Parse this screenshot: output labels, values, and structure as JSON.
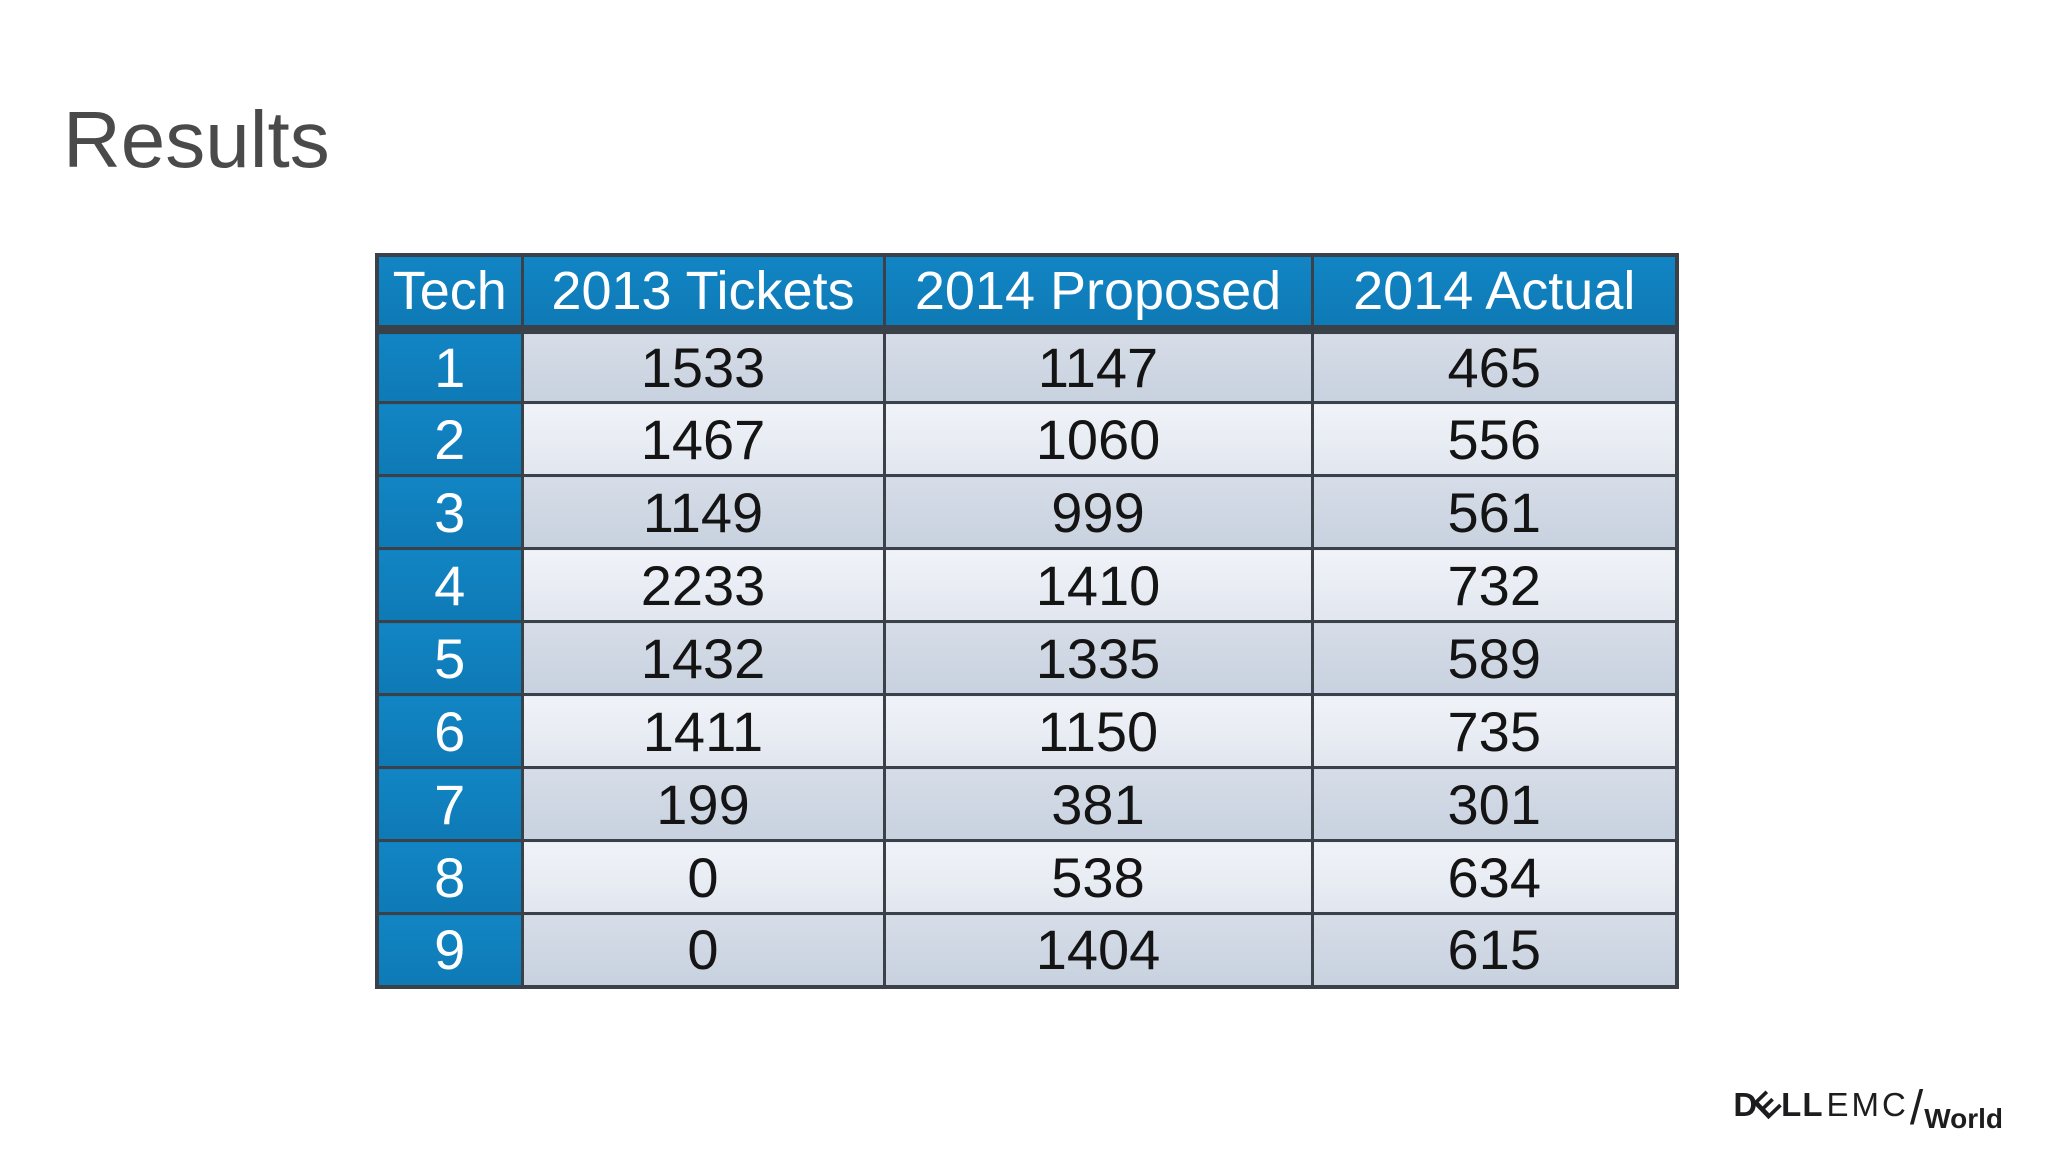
{
  "slide": {
    "title": "Results",
    "background_color": "#ffffff",
    "title_color": "#4a4a4a"
  },
  "colors": {
    "header_blue": "#0f7ebc",
    "table_border": "#3b4149",
    "row_dark": "#ccd5e2",
    "row_light": "#e9edf4",
    "body_text": "#141414",
    "header_text": "#ffffff",
    "logo_color": "#1d1d1f"
  },
  "table": {
    "columns": [
      "Tech",
      "2013 Tickets",
      "2014 Proposed",
      "2014 Actual"
    ],
    "rows": [
      {
        "tech": "1",
        "tickets_2013": "1533",
        "proposed_2014": "1147",
        "actual_2014": "465"
      },
      {
        "tech": "2",
        "tickets_2013": "1467",
        "proposed_2014": "1060",
        "actual_2014": "556"
      },
      {
        "tech": "3",
        "tickets_2013": "1149",
        "proposed_2014": "999",
        "actual_2014": "561"
      },
      {
        "tech": "4",
        "tickets_2013": "2233",
        "proposed_2014": "1410",
        "actual_2014": "732"
      },
      {
        "tech": "5",
        "tickets_2013": "1432",
        "proposed_2014": "1335",
        "actual_2014": "589"
      },
      {
        "tech": "6",
        "tickets_2013": "1411",
        "proposed_2014": "1150",
        "actual_2014": "735"
      },
      {
        "tech": "7",
        "tickets_2013": "199",
        "proposed_2014": "381",
        "actual_2014": "301"
      },
      {
        "tech": "8",
        "tickets_2013": "0",
        "proposed_2014": "538",
        "actual_2014": "634"
      },
      {
        "tech": "9",
        "tickets_2013": "0",
        "proposed_2014": "1404",
        "actual_2014": "615"
      }
    ]
  },
  "chart_data": {
    "type": "table",
    "title": "Results",
    "columns": [
      "Tech",
      "2013 Tickets",
      "2014 Proposed",
      "2014 Actual"
    ],
    "rows": [
      [
        1,
        1533,
        1147,
        465
      ],
      [
        2,
        1467,
        1060,
        556
      ],
      [
        3,
        1149,
        999,
        561
      ],
      [
        4,
        2233,
        1410,
        732
      ],
      [
        5,
        1432,
        1335,
        589
      ],
      [
        6,
        1411,
        1150,
        735
      ],
      [
        7,
        199,
        381,
        301
      ],
      [
        8,
        0,
        538,
        634
      ],
      [
        9,
        0,
        1404,
        615
      ]
    ]
  },
  "logo": {
    "dell_d": "D",
    "dell_e": "E",
    "dell_ll": "LL",
    "emc": "EMC",
    "slash": "/",
    "world": "World"
  }
}
